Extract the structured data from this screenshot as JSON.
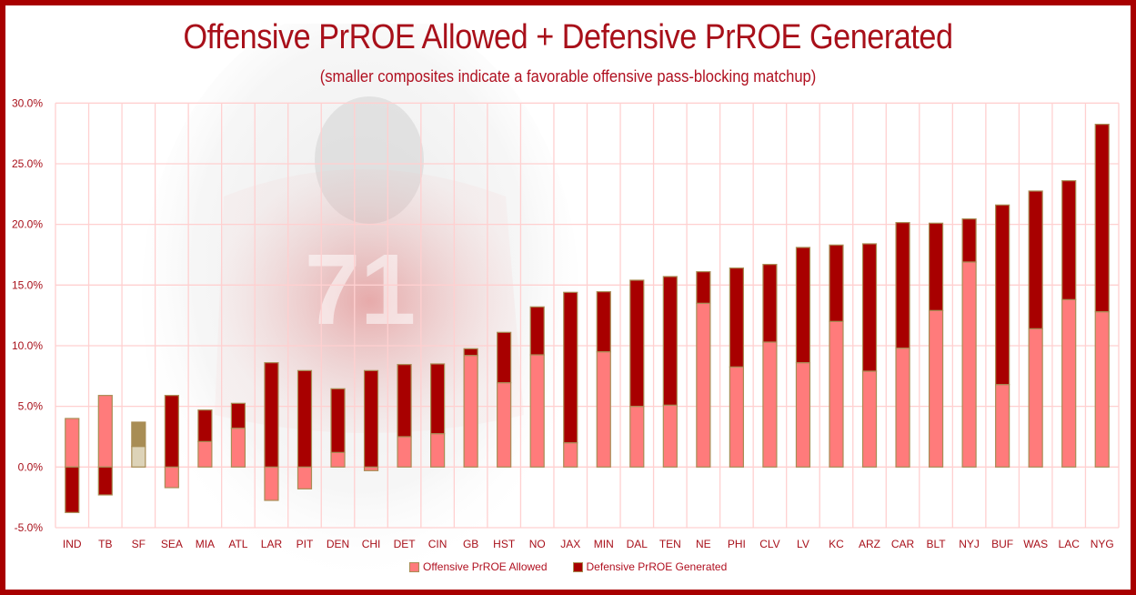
{
  "chart_data": {
    "type": "bar",
    "stacked": true,
    "title": "Offensive PrROE Allowed + Defensive PrROE Generated",
    "subtitle": "(smaller composites indicate a favorable offensive pass-blocking matchup)",
    "xlabel": "",
    "ylabel": "",
    "ylim": [
      -5,
      30
    ],
    "yticks": [
      -5,
      0,
      5,
      10,
      15,
      20,
      25,
      30
    ],
    "ytick_labels": [
      "-5.0%",
      "0.0%",
      "5.0%",
      "10.0%",
      "15.0%",
      "20.0%",
      "25.0%",
      "30.0%"
    ],
    "grid": true,
    "legend_position": "bottom",
    "categories": [
      "IND",
      "TB",
      "SF",
      "SEA",
      "MIA",
      "ATL",
      "LAR",
      "PIT",
      "DEN",
      "CHI",
      "DET",
      "CIN",
      "GB",
      "HST",
      "NO",
      "JAX",
      "MIN",
      "DAL",
      "TEN",
      "NE",
      "PHI",
      "CLV",
      "LV",
      "KC",
      "ARZ",
      "CAR",
      "BLT",
      "NYJ",
      "BUF",
      "WAS",
      "LAC",
      "NYG"
    ],
    "series": [
      {
        "name": "Offensive PrROE Allowed",
        "color": "#ff7b7b",
        "values": [
          4.0,
          5.9,
          1.7,
          -1.7,
          2.1,
          3.2,
          -2.75,
          -1.8,
          1.2,
          -0.3,
          2.5,
          2.75,
          9.2,
          6.95,
          9.25,
          2.0,
          9.5,
          5.0,
          5.1,
          13.5,
          8.25,
          10.3,
          8.6,
          12.0,
          7.9,
          9.8,
          12.9,
          16.9,
          6.8,
          11.4,
          13.8,
          12.8
        ]
      },
      {
        "name": "Defensive PrROE Generated",
        "color": "#a80000",
        "values": [
          -3.75,
          -2.3,
          2.0,
          5.9,
          2.6,
          2.05,
          8.6,
          7.95,
          5.25,
          7.95,
          5.95,
          5.75,
          0.55,
          4.15,
          3.95,
          12.4,
          4.95,
          10.4,
          10.6,
          2.6,
          8.15,
          6.4,
          9.5,
          6.3,
          10.5,
          10.35,
          7.2,
          3.55,
          14.8,
          11.35,
          9.8,
          15.45
        ]
      }
    ],
    "highlight": {
      "category": "SF",
      "offensive_color": "#ddd3b8",
      "defensive_color": "#a88d55"
    },
    "bar_outline_color": "#a88d55",
    "grid_color": "#ffd0d0",
    "tick_color": "#a8101a"
  }
}
